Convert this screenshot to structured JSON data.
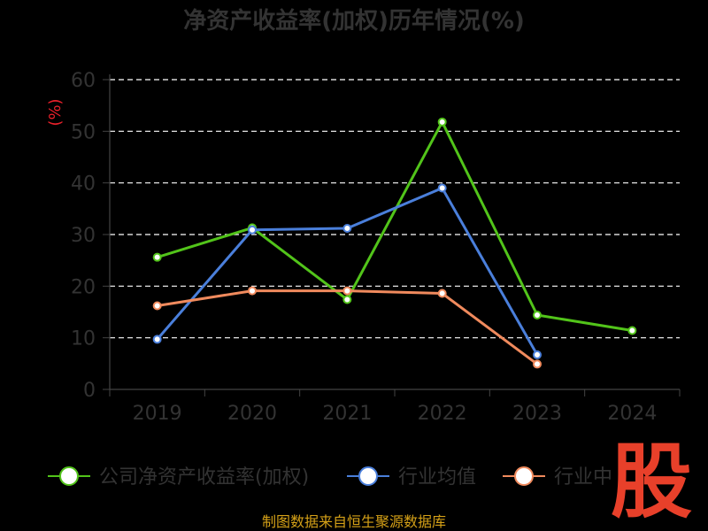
{
  "chart_data": {
    "type": "line",
    "title": "净资产收益率(加权)历年情况(%)",
    "ylabel": "(%)",
    "xlabel": "",
    "categories": [
      "2019",
      "2020",
      "2021",
      "2022",
      "2023",
      "2024"
    ],
    "ylim": [
      0,
      60
    ],
    "yticks": [
      0,
      10,
      20,
      30,
      40,
      50,
      60
    ],
    "grid": true,
    "legend_position": "bottom",
    "series": [
      {
        "name": "公司净资产收益率(加权)",
        "color": "#52c41a",
        "values": [
          25.6,
          31.3,
          17.4,
          51.8,
          14.4,
          11.4
        ]
      },
      {
        "name": "行业均值",
        "color": "#4a7fdb",
        "values": [
          9.7,
          30.9,
          31.2,
          39.0,
          6.7,
          null
        ]
      },
      {
        "name": "行业中位数",
        "color": "#f08a5d",
        "values": [
          16.2,
          19.1,
          19.1,
          18.6,
          4.9,
          null
        ]
      }
    ]
  },
  "legend": {
    "items": [
      "公司净资产收益率(加权)",
      "行业均值",
      "行业中"
    ]
  },
  "source": "制图数据来自恒生聚源数据库",
  "watermark": "股"
}
